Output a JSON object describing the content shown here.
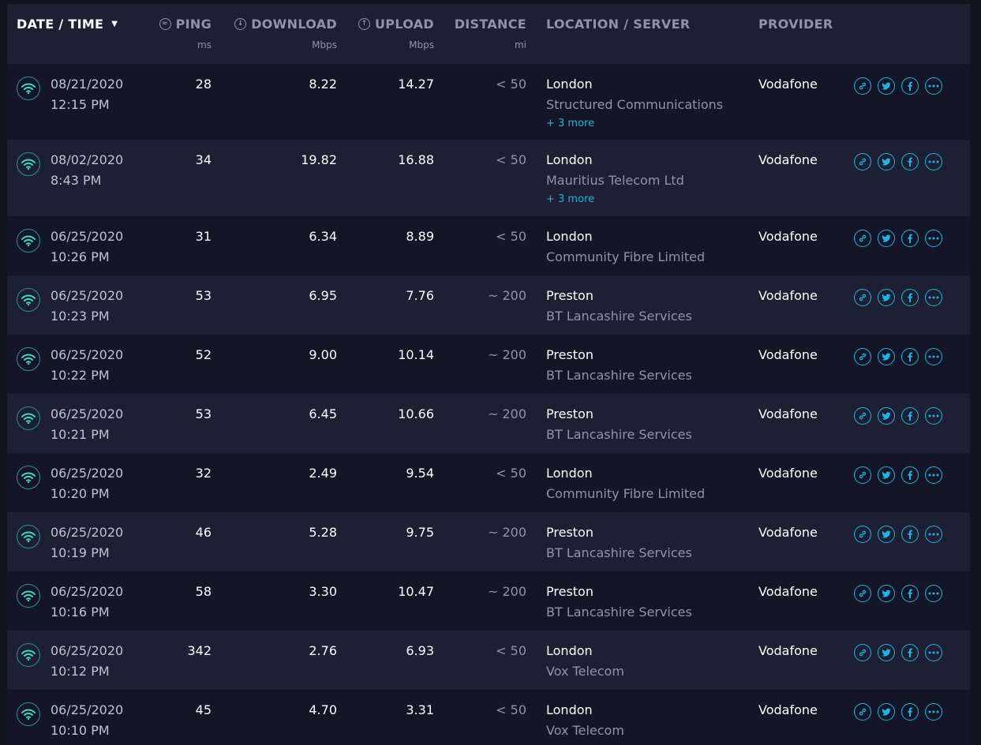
{
  "header": {
    "date_time": "DATE / TIME",
    "ping": "PING",
    "ping_unit": "ms",
    "download": "DOWNLOAD",
    "download_unit": "Mbps",
    "upload": "UPLOAD",
    "upload_unit": "Mbps",
    "distance": "DISTANCE",
    "distance_unit": "mi",
    "location": "LOCATION / SERVER",
    "provider": "PROVIDER"
  },
  "rows": [
    {
      "date": "08/21/2020",
      "time": "12:15 PM",
      "ping": "28",
      "download": "8.22",
      "upload": "14.27",
      "distance": "< 50",
      "location": "London",
      "server": "Structured Communications",
      "more": "+ 3 more",
      "provider": "Vodafone"
    },
    {
      "date": "08/02/2020",
      "time": "8:43 PM",
      "ping": "34",
      "download": "19.82",
      "upload": "16.88",
      "distance": "< 50",
      "location": "London",
      "server": "Mauritius Telecom Ltd",
      "more": "+ 3 more",
      "provider": "Vodafone"
    },
    {
      "date": "06/25/2020",
      "time": "10:26 PM",
      "ping": "31",
      "download": "6.34",
      "upload": "8.89",
      "distance": "< 50",
      "location": "London",
      "server": "Community Fibre Limited",
      "provider": "Vodafone"
    },
    {
      "date": "06/25/2020",
      "time": "10:23 PM",
      "ping": "53",
      "download": "6.95",
      "upload": "7.76",
      "distance": "~ 200",
      "location": "Preston",
      "server": "BT Lancashire Services",
      "provider": "Vodafone"
    },
    {
      "date": "06/25/2020",
      "time": "10:22 PM",
      "ping": "52",
      "download": "9.00",
      "upload": "10.14",
      "distance": "~ 200",
      "location": "Preston",
      "server": "BT Lancashire Services",
      "provider": "Vodafone"
    },
    {
      "date": "06/25/2020",
      "time": "10:21 PM",
      "ping": "53",
      "download": "6.45",
      "upload": "10.66",
      "distance": "~ 200",
      "location": "Preston",
      "server": "BT Lancashire Services",
      "provider": "Vodafone"
    },
    {
      "date": "06/25/2020",
      "time": "10:20 PM",
      "ping": "32",
      "download": "2.49",
      "upload": "9.54",
      "distance": "< 50",
      "location": "London",
      "server": "Community Fibre Limited",
      "provider": "Vodafone"
    },
    {
      "date": "06/25/2020",
      "time": "10:19 PM",
      "ping": "46",
      "download": "5.28",
      "upload": "9.75",
      "distance": "~ 200",
      "location": "Preston",
      "server": "BT Lancashire Services",
      "provider": "Vodafone"
    },
    {
      "date": "06/25/2020",
      "time": "10:16 PM",
      "ping": "58",
      "download": "3.30",
      "upload": "10.47",
      "distance": "~ 200",
      "location": "Preston",
      "server": "BT Lancashire Services",
      "provider": "Vodafone"
    },
    {
      "date": "06/25/2020",
      "time": "10:12 PM",
      "ping": "342",
      "download": "2.76",
      "upload": "6.93",
      "distance": "< 50",
      "location": "London",
      "server": "Vox Telecom",
      "provider": "Vodafone"
    },
    {
      "date": "06/25/2020",
      "time": "10:10 PM",
      "ping": "45",
      "download": "4.70",
      "upload": "3.31",
      "distance": "< 50",
      "location": "London",
      "server": "Vox Telecom",
      "provider": "Vodafone"
    }
  ],
  "colors": {
    "accent": "#1fb3e6",
    "wifi": "#3fd9c5",
    "background": "#14141f",
    "row_alt": "#1d1f33"
  }
}
